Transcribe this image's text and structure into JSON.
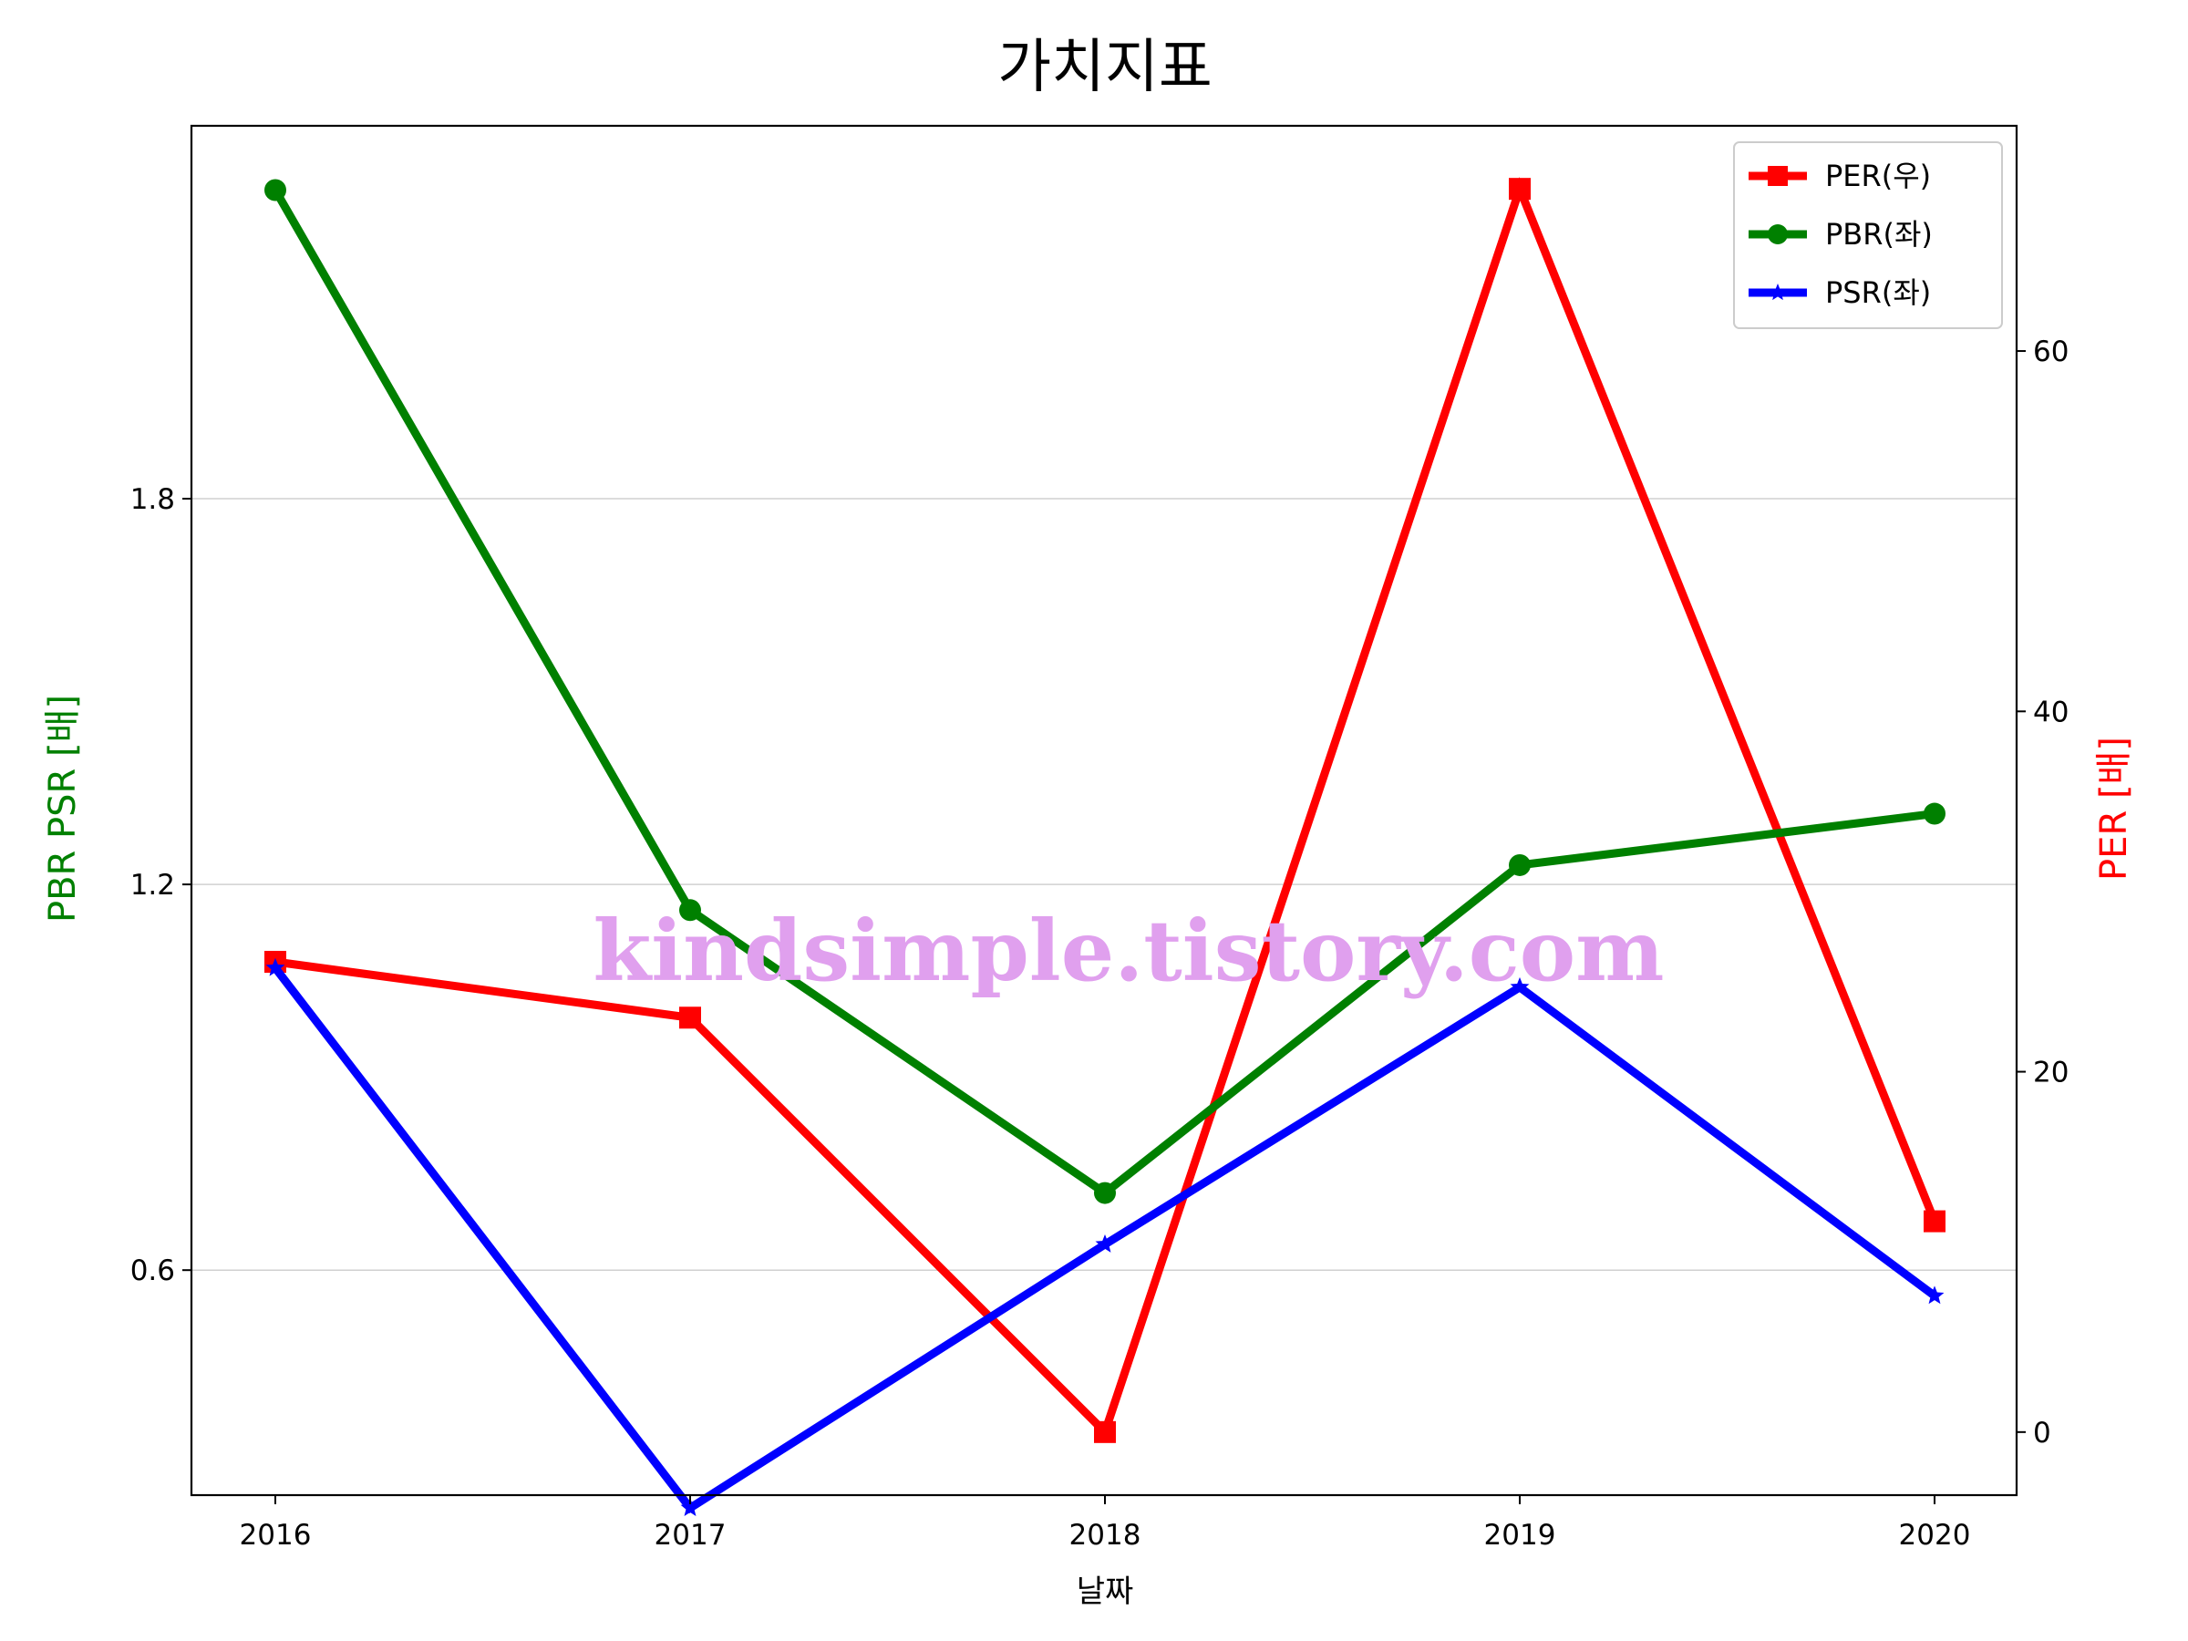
{
  "chart_data": {
    "type": "line",
    "title": "가치지표",
    "xlabel": "날짜",
    "ylabel_left": "PBR PSR [배]",
    "ylabel_right": "PER [배]",
    "categories": [
      "2016",
      "2017",
      "2018",
      "2019",
      "2020"
    ],
    "left_axis": {
      "ylim": [
        0.25,
        2.38
      ],
      "ticks": [
        0.6,
        1.2,
        1.8
      ],
      "tick_labels": [
        "0.6",
        "1.2",
        "1.8"
      ],
      "grid": true
    },
    "right_axis": {
      "ylim": [
        -3.5,
        72.5
      ],
      "ticks": [
        0,
        20,
        40,
        60
      ],
      "tick_labels": [
        "0",
        "20",
        "40",
        "60"
      ]
    },
    "series": [
      {
        "name": "PER(우)",
        "axis": "right",
        "color": "#ff0000",
        "marker": "square",
        "values": [
          26.1,
          23.0,
          0.0,
          69.0,
          11.7
        ]
      },
      {
        "name": "PBR(좌)",
        "axis": "left",
        "color": "#008000",
        "marker": "circle",
        "values": [
          2.28,
          1.16,
          0.72,
          1.23,
          1.31
        ]
      },
      {
        "name": "PSR(좌)",
        "axis": "left",
        "color": "#0000ff",
        "marker": "star",
        "values": [
          1.07,
          0.23,
          0.64,
          1.04,
          0.56
        ]
      }
    ],
    "legend_position": "top-right",
    "colors": {
      "ylabel_left": "#008000",
      "ylabel_right": "#ff0000",
      "watermark": "#e0a0ee"
    },
    "watermark": "kindsimple.tistory.com"
  }
}
